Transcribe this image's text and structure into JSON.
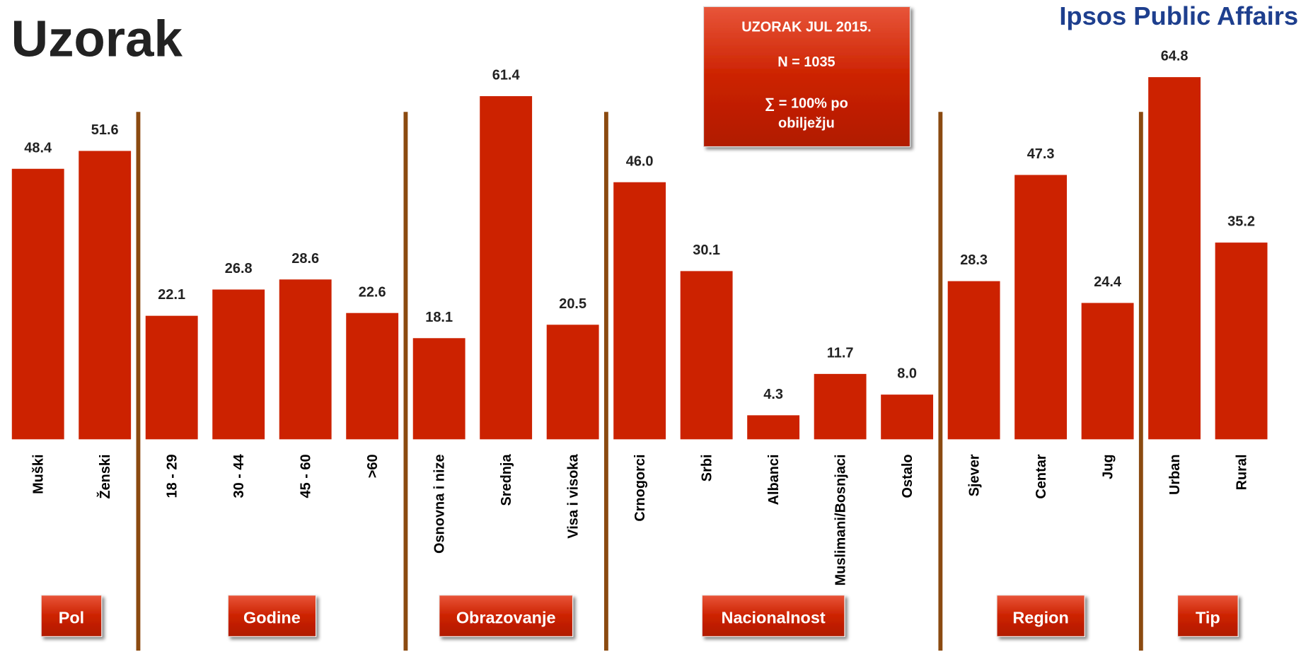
{
  "chart_data": {
    "type": "bar",
    "title": "Uzorak",
    "brand": "Ipsos Public Affairs",
    "info_box": [
      "UZORAK JUL 2015.",
      "N = 1035",
      "∑ = 100% po obilježju"
    ],
    "color": "#cc2200",
    "ylim": [
      0,
      70
    ],
    "groups": [
      {
        "label": "Pol",
        "categories": [
          "Muški",
          "Ženski"
        ],
        "values": [
          48.4,
          51.6
        ],
        "value_labels": [
          "48.4",
          "51.6"
        ]
      },
      {
        "label": "Godine",
        "categories": [
          "18 - 29",
          "30 - 44",
          "45 - 60",
          ">60"
        ],
        "values": [
          22.1,
          26.8,
          28.6,
          22.6
        ],
        "value_labels": [
          "22.1",
          "26.8",
          "28.6",
          "22.6"
        ]
      },
      {
        "label": "Obrazovanje",
        "categories": [
          "Osnovna i nize",
          "Srednja",
          "Visa i visoka"
        ],
        "values": [
          18.1,
          61.4,
          20.5
        ],
        "value_labels": [
          "18.1",
          "61.4",
          "20.5"
        ]
      },
      {
        "label": "Nacionalnost",
        "categories": [
          "Crnogorci",
          "Srbi",
          "Albanci",
          "Muslimani/Bosnjaci",
          "Ostalo"
        ],
        "values": [
          46.0,
          30.1,
          4.3,
          11.7,
          8.0
        ],
        "value_labels": [
          "46.0",
          "30.1",
          "4.3",
          "11.7",
          "8.0"
        ]
      },
      {
        "label": "Region",
        "categories": [
          "Sjever",
          "Centar",
          "Jug"
        ],
        "values": [
          28.3,
          47.3,
          24.4
        ],
        "value_labels": [
          "28.3",
          "47.3",
          "24.4"
        ]
      },
      {
        "label": "Tip",
        "categories": [
          "Urban",
          "Rural"
        ],
        "values": [
          64.8,
          35.2
        ],
        "value_labels": [
          "64.8",
          "35.2"
        ]
      }
    ]
  }
}
